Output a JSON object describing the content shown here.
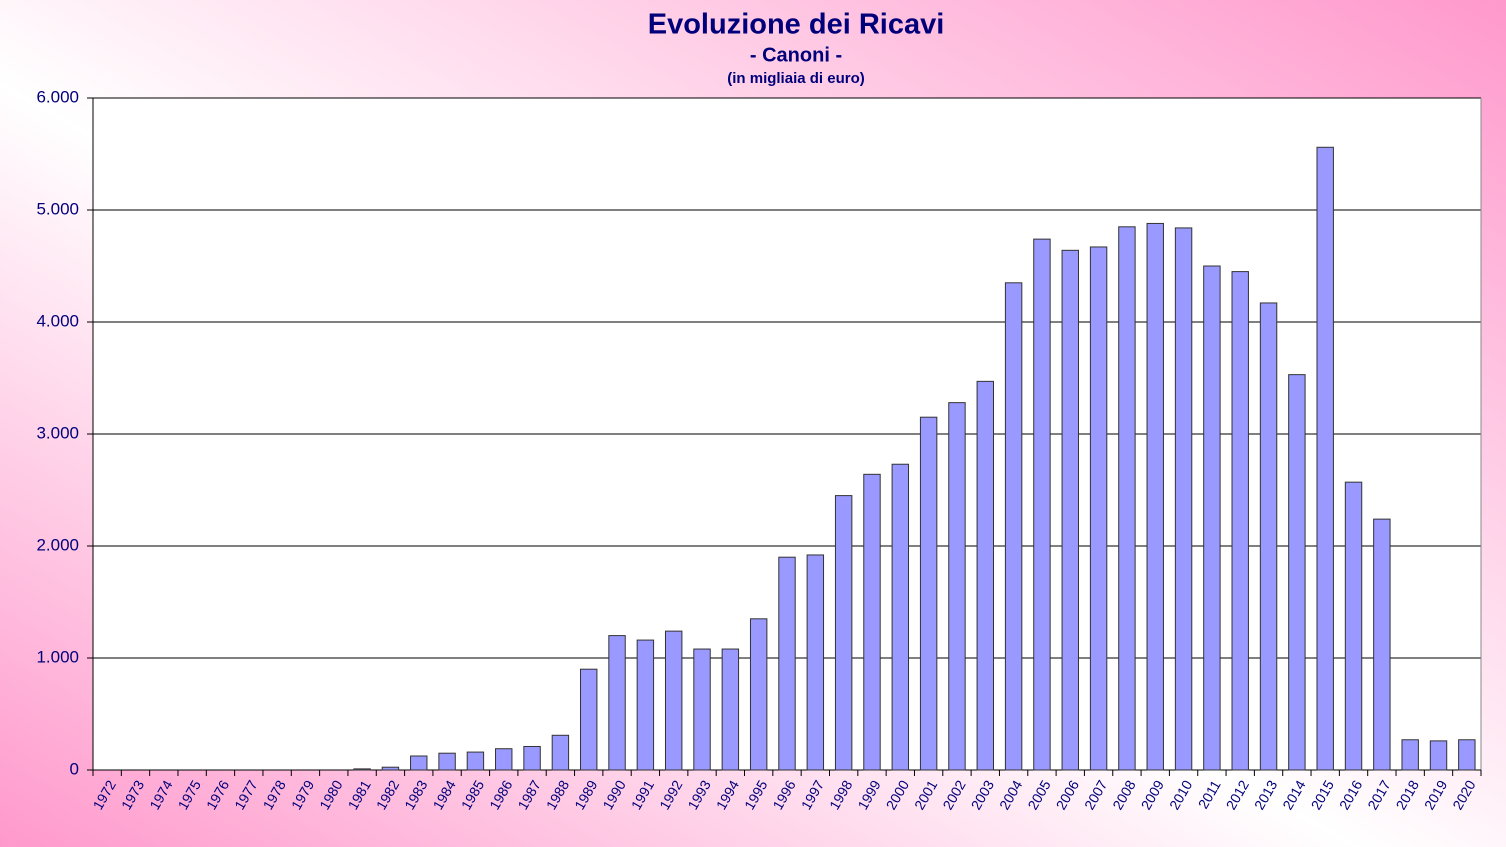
{
  "chart_data": {
    "type": "bar",
    "title": "Evoluzione dei Ricavi",
    "subtitle": "- Canoni -",
    "note": "(in migliaia di euro)",
    "categories": [
      "1972",
      "1973",
      "1974",
      "1975",
      "1976",
      "1977",
      "1978",
      "1979",
      "1980",
      "1981",
      "1982",
      "1983",
      "1984",
      "1985",
      "1986",
      "1987",
      "1988",
      "1989",
      "1990",
      "1991",
      "1992",
      "1993",
      "1994",
      "1995",
      "1996",
      "1997",
      "1998",
      "1999",
      "2000",
      "2001",
      "2002",
      "2003",
      "2004",
      "2005",
      "2006",
      "2007",
      "2008",
      "2009",
      "2010",
      "2011",
      "2012",
      "2013",
      "2014",
      "2015",
      "2016",
      "2017",
      "2018",
      "2019",
      "2020"
    ],
    "values": [
      0,
      0,
      0,
      0,
      0,
      0,
      0,
      0,
      0,
      10,
      25,
      125,
      150,
      160,
      190,
      210,
      310,
      900,
      1200,
      1160,
      1240,
      1080,
      1080,
      1350,
      1900,
      1920,
      2450,
      2640,
      2730,
      3150,
      3280,
      3470,
      4350,
      4740,
      4640,
      4670,
      4850,
      4880,
      4840,
      4500,
      4450,
      4170,
      3530,
      5560,
      2570,
      2240,
      270,
      260,
      270
    ],
    "color": "#9999ff",
    "ylim": [
      0,
      6000
    ],
    "yticks": [
      0,
      {
        "value": 1000,
        "label": "1.000"
      },
      {
        "value": 2000,
        "label": "2.000"
      },
      {
        "value": 3000,
        "label": "3.000"
      },
      {
        "value": 4000,
        "label": "4.000"
      },
      {
        "value": 5000,
        "label": "5.000"
      },
      {
        "value": 6000,
        "label": "6.000"
      }
    ],
    "grid": true
  }
}
